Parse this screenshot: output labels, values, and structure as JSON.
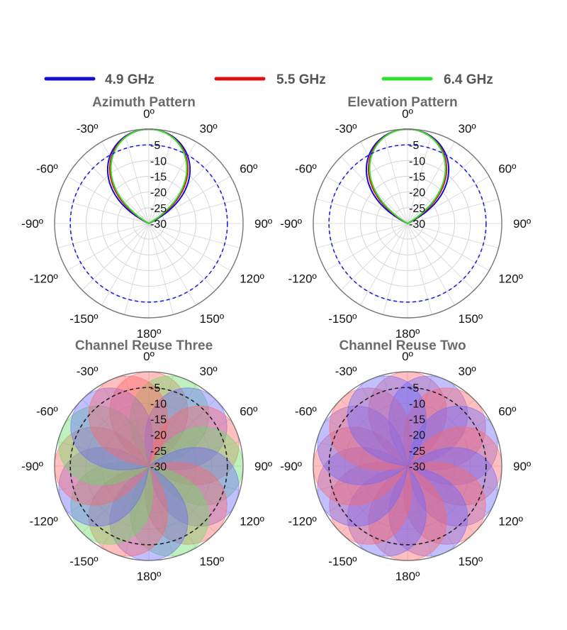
{
  "legend": [
    {
      "label": "4.9 GHz",
      "color": "#1010d0"
    },
    {
      "label": "5.5 GHz",
      "color": "#e01010"
    },
    {
      "label": "6.4 GHz",
      "color": "#30e030"
    }
  ],
  "chart_data": [
    {
      "type": "polar",
      "title": "Azimuth Pattern",
      "angle_ticks": [
        "0º",
        "30º",
        "60º",
        "90º",
        "120º",
        "150º",
        "180º",
        "-150º",
        "-120º",
        "-90º",
        "-60º",
        "-30º"
      ],
      "radial_ticks": [
        "-5",
        "-10",
        "-15",
        "-20",
        "-25",
        "-30"
      ],
      "rlim": [
        -30,
        0
      ],
      "reference_circle_db": -5,
      "series": [
        {
          "name": "4.9 GHz",
          "color": "#1010d0",
          "beam_center_deg": 0,
          "half_width_deg": 32
        },
        {
          "name": "5.5 GHz",
          "color": "#e01010",
          "beam_center_deg": 0,
          "half_width_deg": 30
        },
        {
          "name": "6.4 GHz",
          "color": "#30e030",
          "beam_center_deg": 0,
          "half_width_deg": 29
        }
      ]
    },
    {
      "type": "polar",
      "title": "Elevation Pattern",
      "angle_ticks": [
        "0º",
        "30º",
        "60º",
        "90º",
        "120º",
        "150º",
        "180º",
        "-150º",
        "-120º",
        "-90º",
        "-60º",
        "-30º"
      ],
      "radial_ticks": [
        "-5",
        "-10",
        "-15",
        "-20",
        "-25",
        "-30"
      ],
      "rlim": [
        -30,
        0
      ],
      "reference_circle_db": -5,
      "series": [
        {
          "name": "4.9 GHz",
          "color": "#1010d0",
          "beam_center_deg": 0,
          "half_width_deg": 32
        },
        {
          "name": "5.5 GHz",
          "color": "#e01010",
          "beam_center_deg": 0,
          "half_width_deg": 30
        },
        {
          "name": "6.4 GHz",
          "color": "#30e030",
          "beam_center_deg": 0,
          "half_width_deg": 29
        }
      ]
    },
    {
      "type": "polar",
      "title": "Channel Reuse Three",
      "angle_ticks": [
        "0º",
        "30º",
        "60º",
        "90º",
        "120º",
        "150º",
        "180º",
        "-150º",
        "-120º",
        "-90º",
        "-60º",
        "-30º"
      ],
      "radial_ticks": [
        "-5",
        "-10",
        "-15",
        "-20",
        "-25",
        "-30"
      ],
      "rlim": [
        -30,
        0
      ],
      "reference_circle_db": -5,
      "beam_half_width_deg": 30,
      "beam_colors": [
        "#ff6666",
        "#66dd66",
        "#6a6aff"
      ],
      "beam_centers_deg": [
        0,
        22.5,
        45,
        67.5,
        90,
        112.5,
        135,
        157.5,
        180,
        202.5,
        225,
        247.5,
        270,
        292.5,
        315,
        337.5
      ]
    },
    {
      "type": "polar",
      "title": "Channel Reuse Two",
      "angle_ticks": [
        "0º",
        "30º",
        "60º",
        "90º",
        "120º",
        "150º",
        "180º",
        "-150º",
        "-120º",
        "-90º",
        "-60º",
        "-30º"
      ],
      "radial_ticks": [
        "-5",
        "-10",
        "-15",
        "-20",
        "-25",
        "-30"
      ],
      "rlim": [
        -30,
        0
      ],
      "reference_circle_db": -5,
      "beam_half_width_deg": 30,
      "beam_colors": [
        "#ff6666",
        "#6a6aff"
      ],
      "beam_centers_deg": [
        0,
        22.5,
        45,
        67.5,
        90,
        112.5,
        135,
        157.5,
        180,
        202.5,
        225,
        247.5,
        270,
        292.5,
        315,
        337.5
      ]
    }
  ]
}
